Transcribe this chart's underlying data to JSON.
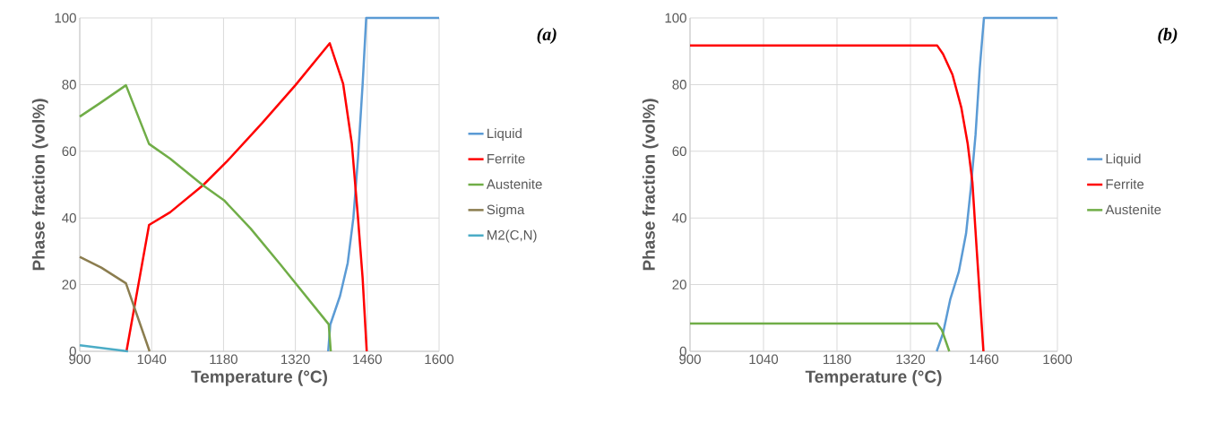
{
  "chart_data": [
    {
      "type": "line",
      "xlabel": "Temperature (°C)",
      "ylabel": "Phase fraction (vol%)",
      "annotations": [
        "(a)"
      ],
      "xlim": [
        900,
        1600
      ],
      "ylim": [
        0,
        100
      ],
      "xticks": [
        900,
        1040,
        1180,
        1320,
        1460,
        1600
      ],
      "yticks": [
        0,
        20,
        40,
        60,
        80,
        100
      ],
      "grid": true,
      "legend": "right",
      "marker": "none",
      "line_style": "solid",
      "series": [
        {
          "name": "Liquid",
          "color": "#5b9bd5",
          "x": [
            1384,
            1388,
            1407,
            1422,
            1433,
            1442,
            1451,
            1458,
            1600
          ],
          "values": [
            0,
            8,
            16.6,
            26.5,
            40,
            58,
            80,
            100,
            100
          ]
        },
        {
          "name": "Ferrite",
          "color": "#ff0000",
          "x": [
            991,
            1035,
            1076,
            1140,
            1187,
            1256,
            1320,
            1387,
            1413,
            1430,
            1442,
            1451,
            1459
          ],
          "values": [
            0,
            37.9,
            41.7,
            49.8,
            57,
            68.6,
            79.8,
            92.4,
            80.3,
            62.3,
            40,
            22,
            0
          ]
        },
        {
          "name": "Austenite",
          "color": "#70ad47",
          "x": [
            900,
            940,
            990,
            1035,
            1076,
            1140,
            1181,
            1233,
            1291,
            1385,
            1389
          ],
          "values": [
            70.4,
            74.5,
            79.8,
            62.2,
            57.8,
            49.8,
            45.3,
            36.8,
            26,
            8.1,
            0
          ]
        },
        {
          "name": "Sigma",
          "color": "#8b7d4f",
          "x": [
            900,
            942,
            990,
            1036
          ],
          "values": [
            28.3,
            25.1,
            20.4,
            0
          ]
        },
        {
          "name": "M2(C,N)",
          "color": "#4bacc6",
          "x": [
            900,
            994
          ],
          "values": [
            1.8,
            0
          ]
        }
      ]
    },
    {
      "type": "line",
      "xlabel": "Temperature (°C)",
      "ylabel": "Phase fraction (vol%)",
      "annotations": [
        "(b)"
      ],
      "xlim": [
        900,
        1600
      ],
      "ylim": [
        0,
        100
      ],
      "xticks": [
        900,
        1040,
        1180,
        1320,
        1460,
        1600
      ],
      "yticks": [
        0,
        20,
        40,
        60,
        80,
        100
      ],
      "grid": true,
      "legend": "right",
      "marker": "none",
      "line_style": "solid",
      "series": [
        {
          "name": "Liquid",
          "color": "#5b9bd5",
          "x": [
            1370,
            1382,
            1396,
            1412,
            1426,
            1435,
            1444,
            1452,
            1460,
            1600
          ],
          "values": [
            0,
            5.4,
            15.7,
            23.8,
            35.4,
            48.9,
            65,
            84.8,
            100,
            100
          ]
        },
        {
          "name": "Ferrite",
          "color": "#ff0000",
          "x": [
            900,
            1371,
            1382,
            1400,
            1417,
            1429,
            1438,
            1446,
            1459
          ],
          "values": [
            91.7,
            91.7,
            89.2,
            83,
            73,
            62.3,
            50.7,
            31,
            0
          ]
        },
        {
          "name": "Austenite",
          "color": "#70ad47",
          "x": [
            900,
            1371,
            1380,
            1394
          ],
          "values": [
            8.3,
            8.3,
            6.3,
            0
          ]
        }
      ]
    }
  ]
}
